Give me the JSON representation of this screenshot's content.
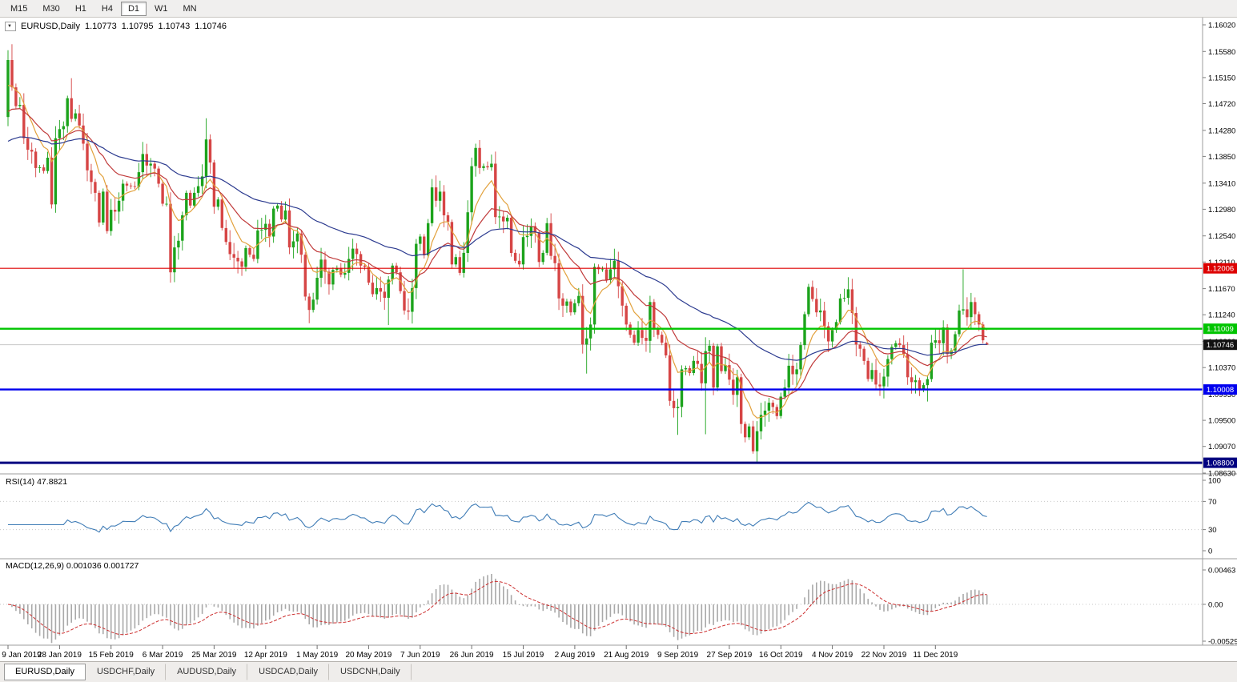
{
  "toolbar": {
    "timeframes": [
      {
        "label": "M15",
        "active": false
      },
      {
        "label": "M30",
        "active": false
      },
      {
        "label": "H1",
        "active": false
      },
      {
        "label": "H4",
        "active": false
      },
      {
        "label": "D1",
        "active": true
      },
      {
        "label": "W1",
        "active": false
      },
      {
        "label": "MN",
        "active": false
      }
    ]
  },
  "chart_header": {
    "symbol": "EURUSD,Daily",
    "open": "1.10773",
    "high": "1.10795",
    "low": "1.10743",
    "close": "1.10746"
  },
  "price_scale": {
    "ticks": [
      "1.16020",
      "1.15580",
      "1.15150",
      "1.14720",
      "1.14280",
      "1.13850",
      "1.13410",
      "1.12980",
      "1.12540",
      "1.12110",
      "1.11670",
      "1.11240",
      "1.10800",
      "1.10370",
      "1.09930",
      "1.09500",
      "1.09070",
      "1.08630"
    ]
  },
  "levels": [
    {
      "name": "resistance-red",
      "label": "1.12006",
      "price": 1.12006,
      "color": "#dd0000",
      "stroke": 1.2
    },
    {
      "name": "support-green",
      "label": "1.11009",
      "price": 1.11009,
      "color": "#00c400",
      "stroke": 2.4
    },
    {
      "name": "support-blue",
      "label": "1.10008",
      "price": 1.10008,
      "color": "#0000ee",
      "stroke": 2.4
    },
    {
      "name": "support-navy",
      "label": "1.08800",
      "price": 1.088,
      "color": "#000080",
      "stroke": 3
    }
  ],
  "current_price": {
    "label": "1.10746",
    "price": 1.10746,
    "badge_color": "#111111",
    "line_color": "#c8c8c8"
  },
  "rsi_panel": {
    "label": "RSI(14) 47.8821",
    "scale": [
      "100",
      "70",
      "30",
      "0"
    ],
    "guides": [
      70,
      30
    ],
    "line_color": "#3f7cb6"
  },
  "macd_panel": {
    "label": "MACD(12,26,9) 0.001036 0.001727",
    "scale": [
      "0.00463",
      "0.00",
      "-0.00529"
    ],
    "histogram_color": "#a9a9a9",
    "signal_color": "#cc2e2e"
  },
  "time_scale": {
    "bars_per_label": 13,
    "dates": [
      "9 Jan 2019",
      "28 Jan 2019",
      "15 Feb 2019",
      "6 Mar 2019",
      "25 Mar 2019",
      "12 Apr 2019",
      "1 May 2019",
      "20 May 2019",
      "7 Jun 2019",
      "26 Jun 2019",
      "15 Jul 2019",
      "2 Aug 2019",
      "21 Aug 2019",
      "9 Sep 2019",
      "27 Sep 2019",
      "16 Oct 2019",
      "4 Nov 2019",
      "22 Nov 2019",
      "11 Dec 2019"
    ]
  },
  "tabs": [
    {
      "label": "EURUSD,Daily",
      "active": true
    },
    {
      "label": "USDCHF,Daily",
      "active": false
    },
    {
      "label": "AUDUSD,Daily",
      "active": false
    },
    {
      "label": "USDCAD,Daily",
      "active": false
    },
    {
      "label": "USDCNH,Daily",
      "active": false
    }
  ],
  "chart_data": {
    "type": "candlestick",
    "symbol": "EURUSD",
    "timeframe": "Daily",
    "last_ohlc": [
      1.10773,
      1.10795,
      1.10743,
      1.10746
    ],
    "y_axis_range": [
      1.0862,
      1.1614
    ],
    "up_color": "#1ca31c",
    "down_color": "#d64545",
    "closes": [
      1.1544,
      1.1499,
      1.1468,
      1.147,
      1.1415,
      1.1396,
      1.1393,
      1.1366,
      1.1367,
      1.1361,
      1.1383,
      1.1306,
      1.1415,
      1.143,
      1.1435,
      1.1481,
      1.1447,
      1.1456,
      1.1436,
      1.1406,
      1.1362,
      1.1343,
      1.1325,
      1.1276,
      1.1327,
      1.1262,
      1.1297,
      1.1294,
      1.1312,
      1.134,
      1.1337,
      1.1336,
      1.1335,
      1.1359,
      1.1389,
      1.137,
      1.1373,
      1.1365,
      1.134,
      1.1307,
      1.1307,
      1.1194,
      1.1235,
      1.1246,
      1.1288,
      1.1325,
      1.1304,
      1.1325,
      1.1336,
      1.1352,
      1.1413,
      1.1375,
      1.1302,
      1.1314,
      1.1267,
      1.1244,
      1.1224,
      1.1218,
      1.1212,
      1.1203,
      1.1234,
      1.1223,
      1.1216,
      1.1263,
      1.1264,
      1.1274,
      1.1253,
      1.1299,
      1.1304,
      1.1281,
      1.1296,
      1.1235,
      1.1245,
      1.1258,
      1.1223,
      1.1154,
      1.1132,
      1.1149,
      1.1185,
      1.1215,
      1.1195,
      1.1174,
      1.1198,
      1.1201,
      1.119,
      1.1193,
      1.1216,
      1.1233,
      1.1224,
      1.1205,
      1.1203,
      1.1177,
      1.1158,
      1.1168,
      1.1162,
      1.1152,
      1.1182,
      1.1205,
      1.1194,
      1.1163,
      1.1131,
      1.1129,
      1.1168,
      1.1241,
      1.1253,
      1.1222,
      1.1275,
      1.1334,
      1.1312,
      1.1327,
      1.1288,
      1.1277,
      1.1207,
      1.1219,
      1.1193,
      1.1226,
      1.1293,
      1.1369,
      1.1399,
      1.1366,
      1.1369,
      1.1367,
      1.1373,
      1.1285,
      1.1286,
      1.1278,
      1.1284,
      1.1226,
      1.1213,
      1.1207,
      1.1252,
      1.1254,
      1.127,
      1.1259,
      1.1211,
      1.1226,
      1.1275,
      1.1221,
      1.1209,
      1.1151,
      1.1139,
      1.1146,
      1.1128,
      1.1143,
      1.1155,
      1.1075,
      1.1085,
      1.1108,
      1.1203,
      1.1199,
      1.1199,
      1.1181,
      1.1199,
      1.1213,
      1.1171,
      1.1139,
      1.1108,
      1.1091,
      1.1078,
      1.1099,
      1.1086,
      1.1081,
      1.1145,
      1.1101,
      1.1091,
      1.1078,
      1.1057,
      1.0982,
      1.097,
      1.0972,
      1.1034,
      1.1036,
      1.1028,
      1.1048,
      1.1043,
      1.1011,
      1.1064,
      1.1073,
      1.1004,
      1.1072,
      1.1031,
      1.1041,
      1.1017,
      1.0992,
      1.1021,
      1.0944,
      1.0922,
      1.094,
      1.0899,
      1.0932,
      1.0959,
      1.0966,
      1.0979,
      1.0972,
      1.0957,
      1.0989,
      1.1004,
      1.104,
      1.1026,
      1.1034,
      1.1074,
      1.1125,
      1.117,
      1.115,
      1.1128,
      1.1131,
      1.1105,
      1.108,
      1.1099,
      1.1112,
      1.1151,
      1.1152,
      1.1166,
      1.1127,
      1.1075,
      1.1068,
      1.1048,
      1.1018,
      1.1033,
      1.1009,
      1.1006,
      1.1022,
      1.1051,
      1.1071,
      1.1077,
      1.1074,
      1.1059,
      1.1021,
      1.1013,
      1.1016,
      1.1002,
      1.1008,
      1.1018,
      1.1078,
      1.1082,
      1.1077,
      1.1103,
      1.1059,
      1.1065,
      1.1092,
      1.1131,
      1.1133,
      1.112,
      1.1145,
      1.1125,
      1.1108,
      1.1082,
      1.10746
    ],
    "wick_overrides": {
      "0": {
        "o": 1.145,
        "h": 1.156,
        "l": 1.1435
      },
      "1": {
        "h": 1.157
      },
      "16": {
        "h": 1.1514
      },
      "41": {
        "l": 1.1177
      },
      "50": {
        "h": 1.1448
      },
      "76": {
        "l": 1.111
      },
      "96": {
        "l": 1.1107
      },
      "119": {
        "h": 1.1412
      },
      "145": {
        "l": 1.106
      },
      "146": {
        "l": 1.1027
      },
      "169": {
        "l": 1.0926
      },
      "176": {
        "h": 1.1087,
        "l": 1.0927
      },
      "189": {
        "l": 1.0879
      },
      "203": {
        "h": 1.1179
      },
      "232": {
        "l": 1.0981
      },
      "241": {
        "h": 1.1199
      },
      "247": {
        "o": 1.10773,
        "h": 1.10795,
        "l": 1.10743,
        "exact": true
      }
    },
    "moving_averages": [
      {
        "name": "ma-fast-line",
        "period": 8,
        "color": "#e2a13c",
        "seed": 1.149
      },
      {
        "name": "ma-mid-line",
        "period": 20,
        "color": "#c03a3a",
        "seed": 1.145
      },
      {
        "name": "ma-slow-line",
        "period": 55,
        "color": "#2b3a8f",
        "seed": 1.1405
      }
    ],
    "rsi": {
      "period": 14
    },
    "macd": {
      "fast": 12,
      "slow": 26,
      "signal": 9
    }
  }
}
